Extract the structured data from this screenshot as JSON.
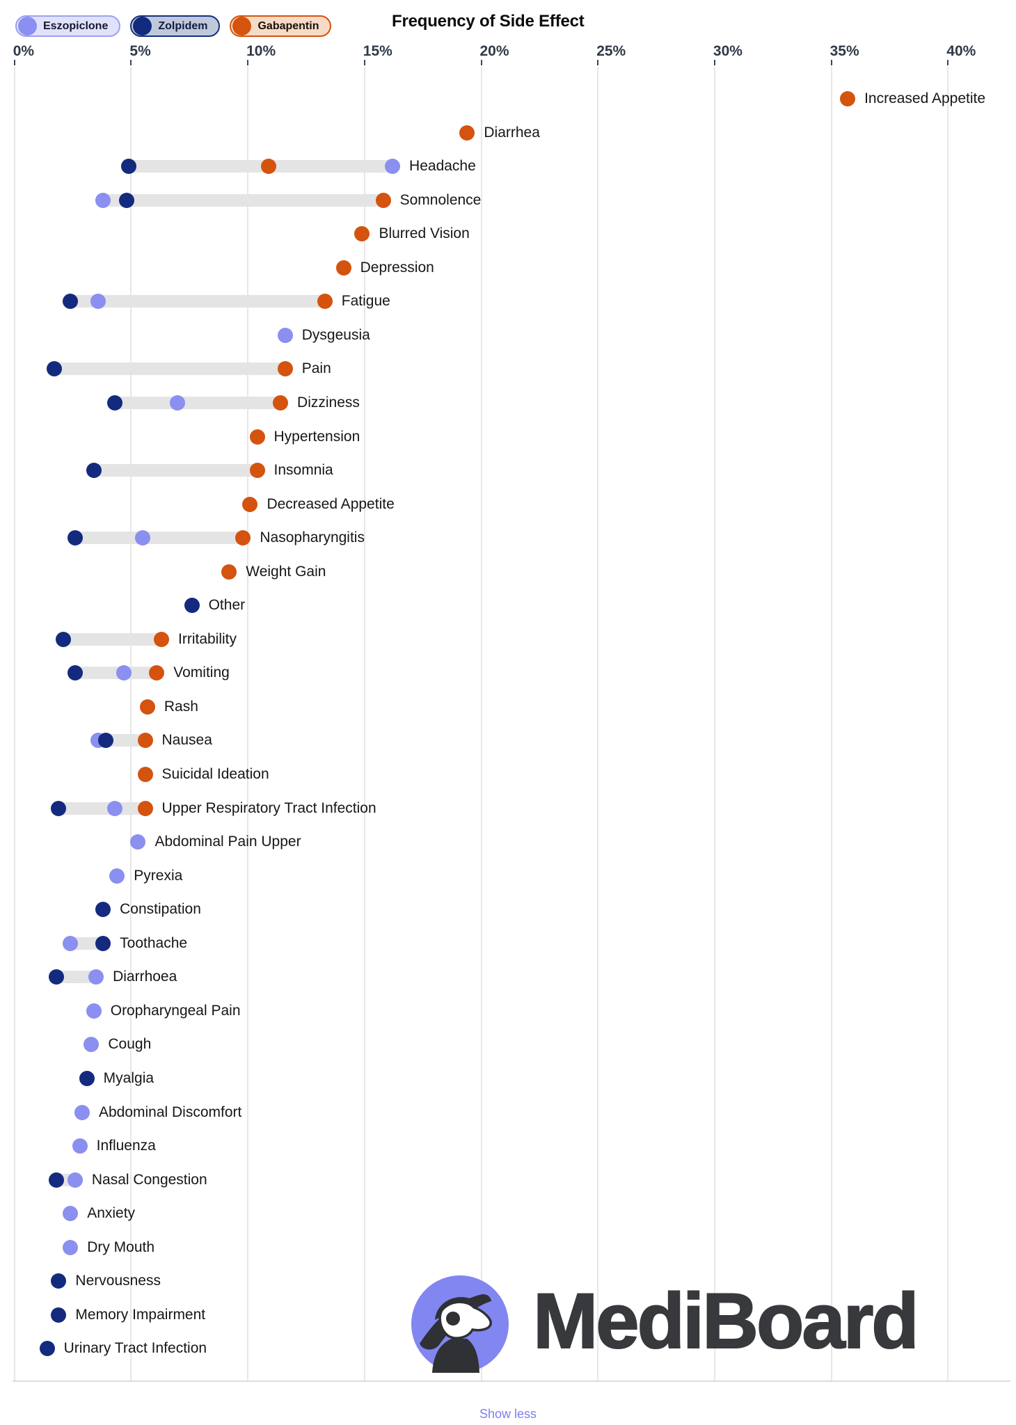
{
  "header": {
    "title": "Frequency of Side Effect",
    "legend": [
      {
        "label": "Eszopiclone",
        "dot_color": "#8a8ff0",
        "bg": "#e0e2fb",
        "border": "#9ba0f1",
        "text_color": "#15182b"
      },
      {
        "label": "Zolpidem",
        "dot_color": "#132a7e",
        "bg": "#c0c9db",
        "border": "#16307f",
        "text_color": "#101c3f"
      },
      {
        "label": "Gabapentin",
        "dot_color": "#d4530e",
        "bg": "#f7dbc6",
        "border": "#d4530e",
        "text_color": "#18100a"
      }
    ]
  },
  "chart_data": {
    "type": "scatter",
    "variant": "dumbbell-dot-plot",
    "title": "Frequency of Side Effect",
    "xlabel": "",
    "x_unit": "%",
    "x_ticks_percent": [
      0,
      5,
      10,
      15,
      20,
      25,
      30,
      35,
      40
    ],
    "xlim": [
      0,
      42.9
    ],
    "grid": "vertical-only",
    "legend_position": "top-left",
    "connector_color": "#e4e4e4",
    "series": [
      {
        "name": "Eszopiclone",
        "color": "#8a8ff0"
      },
      {
        "name": "Zolpidem",
        "color": "#132a7e"
      },
      {
        "name": "Gabapentin",
        "color": "#d4530e"
      }
    ],
    "rows": [
      {
        "label": "Increased Appetite",
        "values": {
          "Gabapentin": 35.7
        }
      },
      {
        "label": "Diarrhea",
        "values": {
          "Gabapentin": 19.4
        }
      },
      {
        "label": "Headache",
        "values": {
          "Zolpidem": 4.9,
          "Gabapentin": 10.9,
          "Eszopiclone": 16.2
        }
      },
      {
        "label": "Somnolence",
        "values": {
          "Eszopiclone": 3.8,
          "Zolpidem": 4.8,
          "Gabapentin": 15.8
        }
      },
      {
        "label": "Blurred Vision",
        "values": {
          "Gabapentin": 14.9
        }
      },
      {
        "label": "Depression",
        "values": {
          "Gabapentin": 14.1
        }
      },
      {
        "label": "Fatigue",
        "values": {
          "Zolpidem": 2.4,
          "Eszopiclone": 3.6,
          "Gabapentin": 13.3
        }
      },
      {
        "label": "Dysgeusia",
        "values": {
          "Eszopiclone": 11.6
        }
      },
      {
        "label": "Pain",
        "values": {
          "Zolpidem": 1.7,
          "Gabapentin": 11.6
        }
      },
      {
        "label": "Dizziness",
        "values": {
          "Zolpidem": 4.3,
          "Eszopiclone": 7.0,
          "Gabapentin": 11.4
        }
      },
      {
        "label": "Hypertension",
        "values": {
          "Gabapentin": 10.4
        }
      },
      {
        "label": "Insomnia",
        "values": {
          "Zolpidem": 3.4,
          "Gabapentin": 10.4
        }
      },
      {
        "label": "Decreased Appetite",
        "values": {
          "Gabapentin": 10.1
        }
      },
      {
        "label": "Nasopharyngitis",
        "values": {
          "Zolpidem": 2.6,
          "Eszopiclone": 5.5,
          "Gabapentin": 9.8
        }
      },
      {
        "label": "Weight Gain",
        "values": {
          "Gabapentin": 9.2
        }
      },
      {
        "label": "Other",
        "values": {
          "Zolpidem": 7.6
        }
      },
      {
        "label": "Irritability",
        "values": {
          "Zolpidem": 2.1,
          "Gabapentin": 6.3
        }
      },
      {
        "label": "Vomiting",
        "values": {
          "Zolpidem": 2.6,
          "Eszopiclone": 4.7,
          "Gabapentin": 6.1
        }
      },
      {
        "label": "Rash",
        "values": {
          "Gabapentin": 5.7
        }
      },
      {
        "label": "Nausea",
        "values": {
          "Eszopiclone": 3.6,
          "Zolpidem": 3.9,
          "Gabapentin": 5.6
        }
      },
      {
        "label": "Suicidal Ideation",
        "values": {
          "Gabapentin": 5.6
        }
      },
      {
        "label": "Upper Respiratory Tract Infection",
        "values": {
          "Zolpidem": 1.9,
          "Eszopiclone": 4.3,
          "Gabapentin": 5.6
        }
      },
      {
        "label": "Abdominal Pain Upper",
        "values": {
          "Eszopiclone": 5.3
        }
      },
      {
        "label": "Pyrexia",
        "values": {
          "Eszopiclone": 4.4
        }
      },
      {
        "label": "Constipation",
        "values": {
          "Zolpidem": 3.8
        }
      },
      {
        "label": "Toothache",
        "values": {
          "Eszopiclone": 2.4,
          "Zolpidem": 3.8
        }
      },
      {
        "label": "Diarrhoea",
        "values": {
          "Zolpidem": 1.8,
          "Eszopiclone": 3.5
        }
      },
      {
        "label": "Oropharyngeal Pain",
        "values": {
          "Eszopiclone": 3.4
        }
      },
      {
        "label": "Cough",
        "values": {
          "Eszopiclone": 3.3
        }
      },
      {
        "label": "Myalgia",
        "values": {
          "Zolpidem": 3.1
        }
      },
      {
        "label": "Abdominal Discomfort",
        "values": {
          "Eszopiclone": 2.9
        }
      },
      {
        "label": "Influenza",
        "values": {
          "Eszopiclone": 2.8
        }
      },
      {
        "label": "Nasal Congestion",
        "values": {
          "Zolpidem": 1.8,
          "Eszopiclone": 2.6
        }
      },
      {
        "label": "Anxiety",
        "values": {
          "Eszopiclone": 2.4
        }
      },
      {
        "label": "Dry Mouth",
        "values": {
          "Eszopiclone": 2.4
        }
      },
      {
        "label": "Nervousness",
        "values": {
          "Zolpidem": 1.9
        }
      },
      {
        "label": "Memory Impairment",
        "values": {
          "Zolpidem": 1.9
        }
      },
      {
        "label": "Urinary Tract Infection",
        "values": {
          "Zolpidem": 1.4
        }
      }
    ]
  },
  "watermark": {
    "brand": "MediBoard",
    "icon_bg": "#8286f0",
    "icon_fg": "#2f3134",
    "text_color": "#37393c"
  },
  "footer": {
    "show_less_label": "Show less",
    "link_color": "#7b80ee"
  }
}
